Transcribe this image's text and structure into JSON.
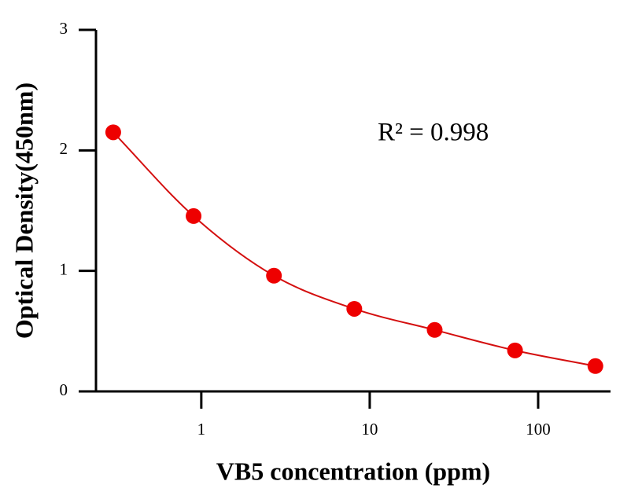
{
  "chart_data": {
    "type": "scatter",
    "x_label": "VB5 concentration (ppm)",
    "y_label": "Optical Density(450nm)",
    "annotation": "R² = 0.998",
    "x": [
      0.3,
      0.9,
      2.7,
      8.1,
      24.3,
      72.9,
      218.7
    ],
    "values": [
      2.15,
      1.455,
      0.96,
      0.685,
      0.51,
      0.34,
      0.21
    ],
    "color": "#ee0000",
    "curve_color": "#d40f0f",
    "curve": true,
    "xscale": "log",
    "xlim": [
      0.237,
      269
    ],
    "xticks": [
      1,
      10,
      100
    ],
    "ylim": [
      0,
      3
    ],
    "yticks": [
      0,
      1,
      2,
      3
    ]
  }
}
